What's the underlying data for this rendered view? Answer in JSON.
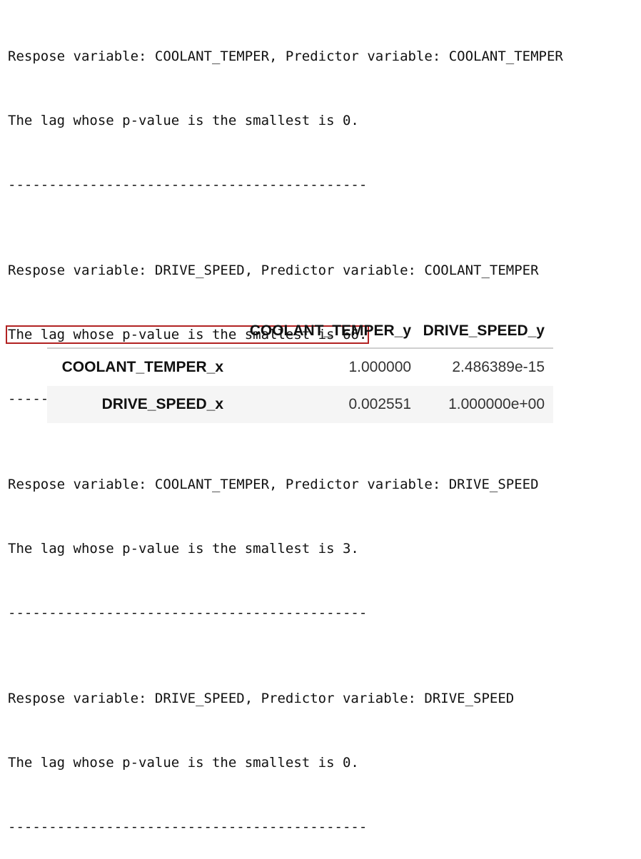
{
  "console": {
    "blocks": [
      {
        "response_line": "Respose variable: COOLANT_TEMPER, Predictor variable: COOLANT_TEMPER",
        "lag_line": "The lag whose p-value is the smallest is 0.",
        "separator": "--------------------------------------------",
        "highlighted": false
      },
      {
        "response_line": "Respose variable: DRIVE_SPEED, Predictor variable: COOLANT_TEMPER",
        "lag_line": "The lag whose p-value is the smallest is 66.",
        "separator": "--------------------------------------------",
        "highlighted": true
      },
      {
        "response_line": "Respose variable: COOLANT_TEMPER, Predictor variable: DRIVE_SPEED",
        "lag_line": "The lag whose p-value is the smallest is 3.",
        "separator": "--------------------------------------------",
        "highlighted": false
      },
      {
        "response_line": "Respose variable: DRIVE_SPEED, Predictor variable: DRIVE_SPEED",
        "lag_line": "The lag whose p-value is the smallest is 0.",
        "separator": "--------------------------------------------",
        "highlighted": false
      }
    ],
    "highlight_color": "#b22222"
  },
  "table": {
    "columns": [
      "",
      "COOLANT_TEMPER_y",
      "DRIVE_SPEED_y"
    ],
    "rows": [
      {
        "index": "COOLANT_TEMPER_x",
        "values": [
          "1.000000",
          "2.486389e-15"
        ]
      },
      {
        "index": "DRIVE_SPEED_x",
        "values": [
          "0.002551",
          "1.000000e+00"
        ]
      }
    ]
  }
}
